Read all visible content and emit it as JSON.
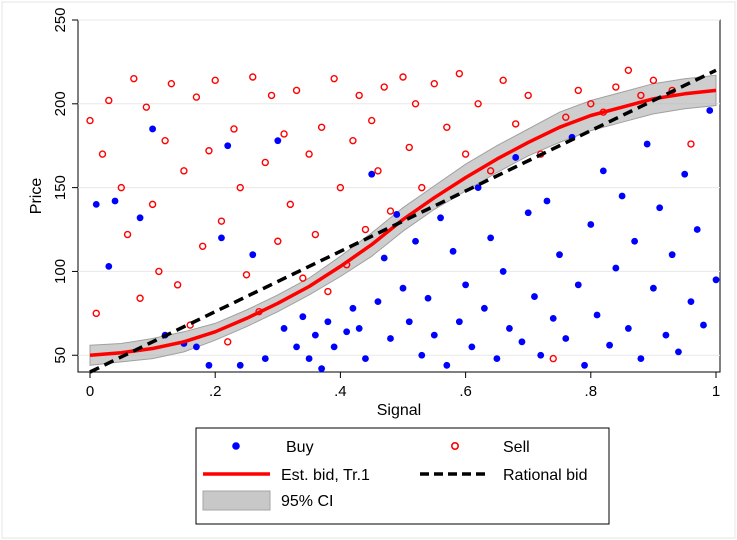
{
  "chart_data": {
    "type": "scatter",
    "xlabel": "Signal",
    "ylabel": "Price",
    "xlim": [
      0,
      1
    ],
    "ylim": [
      40,
      250
    ],
    "x_ticks": [
      0,
      0.2,
      0.4,
      0.6,
      0.8,
      1
    ],
    "x_tick_labels": [
      "0",
      ".2",
      ".4",
      ".6",
      ".8",
      "1"
    ],
    "y_ticks": [
      50,
      100,
      150,
      200,
      250
    ],
    "y_tick_labels": [
      "50",
      "100",
      "150",
      "200",
      "250"
    ],
    "grid": "horizontal",
    "legend_placement": "bottom",
    "legend": {
      "buy": "Buy",
      "sell": "Sell",
      "est_bid": "Est. bid, Tr.1",
      "rational_bid": "Rational bid",
      "ci": "95% CI"
    },
    "colors": {
      "buy": "#0000ff",
      "sell": "#ff0000",
      "est_bid": "#ff0000",
      "rational_bid": "#000000",
      "ci": "#b0b0b0"
    },
    "series": [
      {
        "name": "Buy",
        "kind": "scatter",
        "marker": "filled-circle",
        "points": [
          [
            0.01,
            140
          ],
          [
            0.03,
            103
          ],
          [
            0.04,
            142
          ],
          [
            0.08,
            132
          ],
          [
            0.1,
            185
          ],
          [
            0.12,
            62
          ],
          [
            0.15,
            57
          ],
          [
            0.17,
            55
          ],
          [
            0.19,
            44
          ],
          [
            0.21,
            120
          ],
          [
            0.22,
            175
          ],
          [
            0.24,
            44
          ],
          [
            0.26,
            110
          ],
          [
            0.28,
            48
          ],
          [
            0.3,
            178
          ],
          [
            0.31,
            66
          ],
          [
            0.33,
            55
          ],
          [
            0.34,
            73
          ],
          [
            0.35,
            48
          ],
          [
            0.36,
            62
          ],
          [
            0.37,
            42
          ],
          [
            0.38,
            70
          ],
          [
            0.39,
            55
          ],
          [
            0.41,
            64
          ],
          [
            0.42,
            78
          ],
          [
            0.43,
            66
          ],
          [
            0.44,
            48
          ],
          [
            0.45,
            158
          ],
          [
            0.46,
            82
          ],
          [
            0.47,
            108
          ],
          [
            0.48,
            60
          ],
          [
            0.49,
            134
          ],
          [
            0.5,
            90
          ],
          [
            0.51,
            70
          ],
          [
            0.52,
            118
          ],
          [
            0.53,
            50
          ],
          [
            0.54,
            84
          ],
          [
            0.55,
            62
          ],
          [
            0.56,
            132
          ],
          [
            0.57,
            44
          ],
          [
            0.58,
            112
          ],
          [
            0.59,
            70
          ],
          [
            0.6,
            92
          ],
          [
            0.61,
            55
          ],
          [
            0.62,
            150
          ],
          [
            0.63,
            78
          ],
          [
            0.64,
            120
          ],
          [
            0.65,
            48
          ],
          [
            0.66,
            100
          ],
          [
            0.67,
            66
          ],
          [
            0.68,
            168
          ],
          [
            0.69,
            58
          ],
          [
            0.7,
            135
          ],
          [
            0.71,
            85
          ],
          [
            0.72,
            50
          ],
          [
            0.73,
            142
          ],
          [
            0.74,
            72
          ],
          [
            0.75,
            110
          ],
          [
            0.76,
            60
          ],
          [
            0.77,
            180
          ],
          [
            0.78,
            92
          ],
          [
            0.79,
            44
          ],
          [
            0.8,
            128
          ],
          [
            0.81,
            74
          ],
          [
            0.82,
            160
          ],
          [
            0.83,
            56
          ],
          [
            0.84,
            102
          ],
          [
            0.85,
            145
          ],
          [
            0.86,
            66
          ],
          [
            0.87,
            118
          ],
          [
            0.88,
            48
          ],
          [
            0.89,
            176
          ],
          [
            0.9,
            90
          ],
          [
            0.91,
            138
          ],
          [
            0.92,
            62
          ],
          [
            0.93,
            110
          ],
          [
            0.94,
            52
          ],
          [
            0.95,
            158
          ],
          [
            0.96,
            82
          ],
          [
            0.97,
            125
          ],
          [
            0.98,
            68
          ],
          [
            0.99,
            196
          ],
          [
            1.0,
            95
          ]
        ]
      },
      {
        "name": "Sell",
        "kind": "scatter",
        "marker": "hollow-circle",
        "points": [
          [
            0.0,
            190
          ],
          [
            0.01,
            75
          ],
          [
            0.02,
            170
          ],
          [
            0.03,
            202
          ],
          [
            0.05,
            150
          ],
          [
            0.06,
            122
          ],
          [
            0.07,
            215
          ],
          [
            0.08,
            84
          ],
          [
            0.09,
            198
          ],
          [
            0.1,
            140
          ],
          [
            0.11,
            100
          ],
          [
            0.12,
            178
          ],
          [
            0.13,
            212
          ],
          [
            0.14,
            92
          ],
          [
            0.15,
            160
          ],
          [
            0.16,
            68
          ],
          [
            0.17,
            204
          ],
          [
            0.18,
            115
          ],
          [
            0.19,
            172
          ],
          [
            0.2,
            214
          ],
          [
            0.21,
            130
          ],
          [
            0.22,
            58
          ],
          [
            0.23,
            185
          ],
          [
            0.24,
            150
          ],
          [
            0.25,
            98
          ],
          [
            0.26,
            216
          ],
          [
            0.27,
            76
          ],
          [
            0.28,
            165
          ],
          [
            0.29,
            205
          ],
          [
            0.3,
            118
          ],
          [
            0.31,
            182
          ],
          [
            0.32,
            140
          ],
          [
            0.33,
            208
          ],
          [
            0.34,
            96
          ],
          [
            0.35,
            170
          ],
          [
            0.36,
            122
          ],
          [
            0.37,
            186
          ],
          [
            0.38,
            88
          ],
          [
            0.39,
            215
          ],
          [
            0.4,
            150
          ],
          [
            0.41,
            104
          ],
          [
            0.42,
            178
          ],
          [
            0.43,
            205
          ],
          [
            0.44,
            125
          ],
          [
            0.45,
            190
          ],
          [
            0.46,
            160
          ],
          [
            0.47,
            210
          ],
          [
            0.48,
            136
          ],
          [
            0.5,
            216
          ],
          [
            0.51,
            174
          ],
          [
            0.52,
            200
          ],
          [
            0.53,
            150
          ],
          [
            0.55,
            212
          ],
          [
            0.57,
            186
          ],
          [
            0.59,
            218
          ],
          [
            0.6,
            170
          ],
          [
            0.62,
            200
          ],
          [
            0.64,
            160
          ],
          [
            0.66,
            214
          ],
          [
            0.68,
            188
          ],
          [
            0.7,
            205
          ],
          [
            0.72,
            170
          ],
          [
            0.74,
            48
          ],
          [
            0.76,
            192
          ],
          [
            0.78,
            208
          ],
          [
            0.8,
            200
          ],
          [
            0.82,
            195
          ],
          [
            0.84,
            210
          ],
          [
            0.86,
            220
          ],
          [
            0.88,
            205
          ],
          [
            0.9,
            214
          ],
          [
            0.93,
            208
          ],
          [
            0.96,
            176
          ]
        ]
      },
      {
        "name": "Est. bid, Tr.1",
        "kind": "line",
        "x": [
          0,
          0.05,
          0.1,
          0.15,
          0.2,
          0.25,
          0.3,
          0.35,
          0.4,
          0.45,
          0.5,
          0.55,
          0.6,
          0.65,
          0.7,
          0.75,
          0.8,
          0.85,
          0.9,
          0.95,
          1
        ],
        "y": [
          50,
          51.5,
          54,
          58,
          64,
          72,
          81,
          91,
          103,
          116,
          131,
          144,
          156,
          167,
          177,
          186,
          193,
          198,
          203,
          206,
          208
        ],
        "ci_lower": [
          44,
          46,
          48,
          52,
          59,
          67,
          76,
          86,
          97,
          109,
          124,
          137,
          148,
          159,
          169,
          177,
          184,
          189,
          194,
          197,
          199
        ],
        "ci_upper": [
          56,
          57,
          60,
          64,
          69,
          77,
          86,
          96,
          109,
          123,
          138,
          151,
          164,
          175,
          185,
          195,
          202,
          207,
          212,
          215,
          217
        ]
      },
      {
        "name": "Rational bid",
        "kind": "line",
        "x": [
          0,
          1
        ],
        "y": [
          40,
          220
        ]
      }
    ]
  }
}
